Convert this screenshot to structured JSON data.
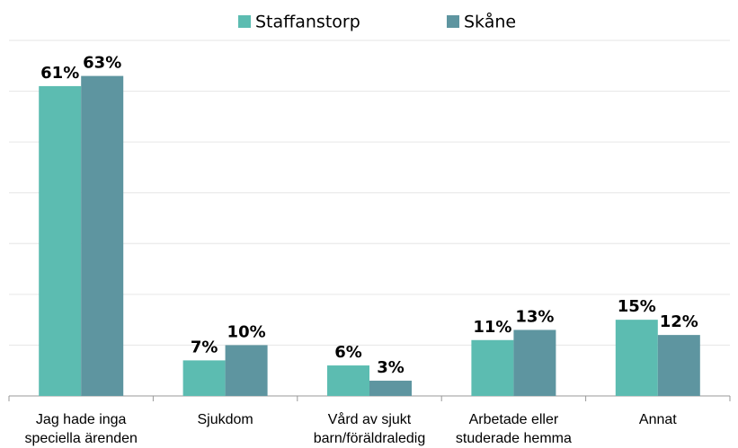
{
  "chart_data": {
    "type": "bar",
    "categories": [
      "Jag hade inga\nspeciella ärenden",
      "Sjukdom",
      "Vård av sjukt\nbarn/föräldraledig",
      "Arbetade eller\nstuderade hemma",
      "Annat"
    ],
    "series": [
      {
        "name": "Staffanstorp",
        "color": "#5cbcb1",
        "values": [
          61,
          7,
          6,
          11,
          15
        ],
        "value_labels": [
          "61%",
          "7%",
          "6%",
          "11%",
          "15%"
        ]
      },
      {
        "name": "Skåne",
        "color": "#5e95a0",
        "values": [
          63,
          10,
          3,
          13,
          12
        ],
        "value_labels": [
          "63%",
          "10%",
          "3%",
          "13%",
          "12%"
        ]
      }
    ],
    "ylim": [
      0,
      70
    ],
    "yticks": [
      0,
      10,
      20,
      30,
      40,
      50,
      60,
      70
    ],
    "grid": true,
    "legend": "top"
  }
}
